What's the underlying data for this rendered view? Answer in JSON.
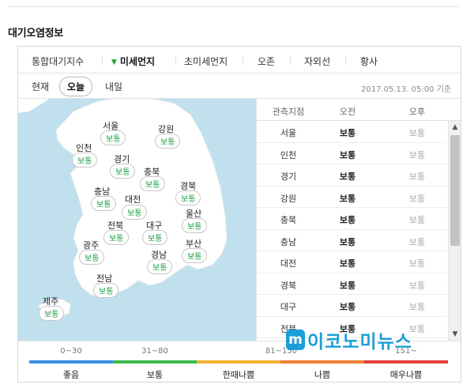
{
  "section_title": "대기오염정보",
  "tabs": [
    {
      "label": "통합대기지수",
      "active": false
    },
    {
      "label": "미세먼지",
      "active": true
    },
    {
      "label": "초미세먼지",
      "active": false
    },
    {
      "label": "오존",
      "active": false
    },
    {
      "label": "자외선",
      "active": false
    },
    {
      "label": "황사",
      "active": false
    }
  ],
  "days": [
    {
      "label": "현재",
      "selected": false
    },
    {
      "label": "오늘",
      "selected": true
    },
    {
      "label": "내일",
      "selected": false
    }
  ],
  "base_time": "2017.05.13. 05:00 기준",
  "map_regions": [
    {
      "name": "서울",
      "status": "보통"
    },
    {
      "name": "강원",
      "status": "보통"
    },
    {
      "name": "인천",
      "status": "보통"
    },
    {
      "name": "경기",
      "status": "보통"
    },
    {
      "name": "충북",
      "status": "보통"
    },
    {
      "name": "경북",
      "status": "보통"
    },
    {
      "name": "충남",
      "status": "보통"
    },
    {
      "name": "대전",
      "status": "보통"
    },
    {
      "name": "울산",
      "status": "보통"
    },
    {
      "name": "전북",
      "status": "보통"
    },
    {
      "name": "대구",
      "status": "보통"
    },
    {
      "name": "광주",
      "status": "보통"
    },
    {
      "name": "경남",
      "status": "보통"
    },
    {
      "name": "부산",
      "status": "보통"
    },
    {
      "name": "전남",
      "status": "보통"
    },
    {
      "name": "제주",
      "status": "보통"
    }
  ],
  "table": {
    "headers": {
      "station": "관측지점",
      "am": "오전",
      "pm": "오후"
    },
    "rows": [
      {
        "name": "서울",
        "am": "보통",
        "pm": "보통"
      },
      {
        "name": "인천",
        "am": "보통",
        "pm": "보통"
      },
      {
        "name": "경기",
        "am": "보통",
        "pm": "보통"
      },
      {
        "name": "강원",
        "am": "보통",
        "pm": "보통"
      },
      {
        "name": "충북",
        "am": "보통",
        "pm": "보통"
      },
      {
        "name": "충남",
        "am": "보통",
        "pm": "보통"
      },
      {
        "name": "대전",
        "am": "보통",
        "pm": "보통"
      },
      {
        "name": "경북",
        "am": "보통",
        "pm": "보통"
      },
      {
        "name": "대구",
        "am": "보통",
        "pm": "보통"
      },
      {
        "name": "전북",
        "am": "보통",
        "pm": "보통"
      }
    ]
  },
  "legend": [
    {
      "range": "0~30",
      "name": "좋음",
      "color": "#3a8ee6"
    },
    {
      "range": "31~80",
      "name": "보통",
      "color": "#3cb94a"
    },
    {
      "range": "81~150",
      "name": "한때나쁨",
      "color": "#f2b233"
    },
    {
      "range": "81~150",
      "name": "나쁨",
      "color": "#f07f33"
    },
    {
      "range": "151~",
      "name": "매우나쁨",
      "color": "#e2413a"
    }
  ],
  "colors": {
    "accent_green": "#1aa53a",
    "map_sea": "#bfe0ec",
    "map_land": "#ffffff"
  },
  "watermark": {
    "logo_letter": "m",
    "text": "이코노미뉴스"
  }
}
